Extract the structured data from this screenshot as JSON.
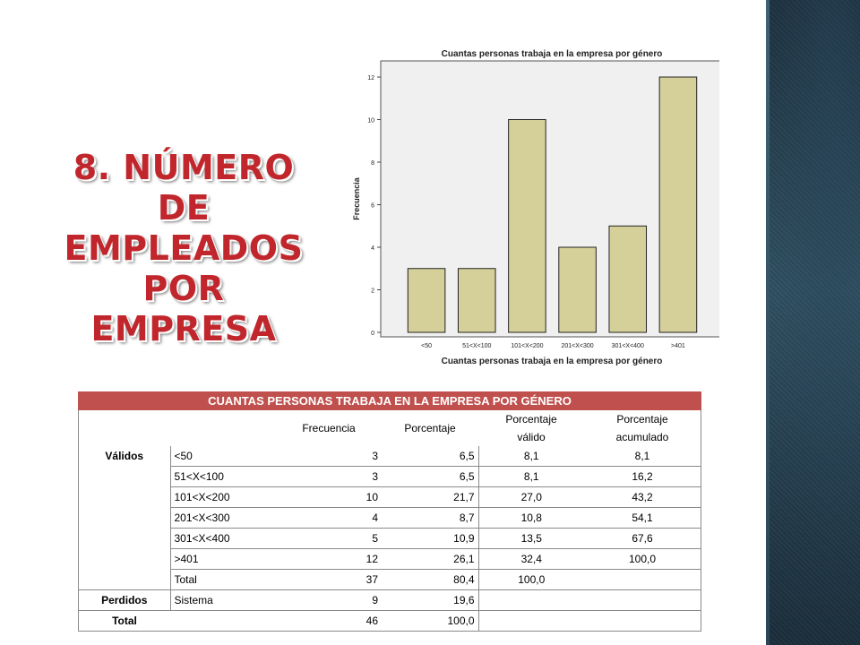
{
  "slide": {
    "title_line1": "8. NÚMERO DE",
    "title_line2": "EMPLEADOS",
    "title_line3": "POR EMPRESA"
  },
  "chart_data": {
    "type": "bar",
    "title": "Cuantas personas trabaja en la empresa por género",
    "xlabel": "Cuantas personas trabaja en la empresa por género",
    "ylabel": "Frecuencia",
    "categories": [
      "<50",
      "51<X<100",
      "101<X<200",
      "201<X<300",
      "301<X<400",
      ">401"
    ],
    "values": [
      3,
      3,
      10,
      4,
      5,
      12
    ],
    "yticks": [
      0,
      2,
      4,
      6,
      8,
      10,
      12
    ],
    "ylim": [
      0,
      12.5
    ],
    "grid": false,
    "bar_color": "#d5d09a",
    "plot_background": "#f0f0f0"
  },
  "table": {
    "caption": "CUANTAS PERSONAS TRABAJA EN LA EMPRESA POR GÉNERO",
    "headers": {
      "frecuencia": "Frecuencia",
      "porcentaje": "Porcentaje",
      "valido_1": "Porcentaje",
      "valido_2": "válido",
      "acum_1": "Porcentaje",
      "acum_2": "acumulado"
    },
    "label_validos": "Válidos",
    "label_perdidos": "Perdidos",
    "label_total": "Total",
    "rows": [
      {
        "cat": "<50",
        "freq": "3",
        "pct": "6,5",
        "valid": "8,1",
        "cum": "8,1"
      },
      {
        "cat": "51<X<100",
        "freq": "3",
        "pct": "6,5",
        "valid": "8,1",
        "cum": "16,2"
      },
      {
        "cat": "101<X<200",
        "freq": "10",
        "pct": "21,7",
        "valid": "27,0",
        "cum": "43,2"
      },
      {
        "cat": "201<X<300",
        "freq": "4",
        "pct": "8,7",
        "valid": "10,8",
        "cum": "54,1"
      },
      {
        "cat": "301<X<400",
        "freq": "5",
        "pct": "10,9",
        "valid": "13,5",
        "cum": "67,6"
      },
      {
        "cat": ">401",
        "freq": "12",
        "pct": "26,1",
        "valid": "32,4",
        "cum": "100,0"
      },
      {
        "cat": "Total",
        "freq": "37",
        "pct": "80,4",
        "valid": "100,0",
        "cum": ""
      }
    ],
    "perdidos": {
      "cat": "Sistema",
      "freq": "9",
      "pct": "19,6"
    },
    "total": {
      "freq": "46",
      "pct": "100,0"
    }
  }
}
